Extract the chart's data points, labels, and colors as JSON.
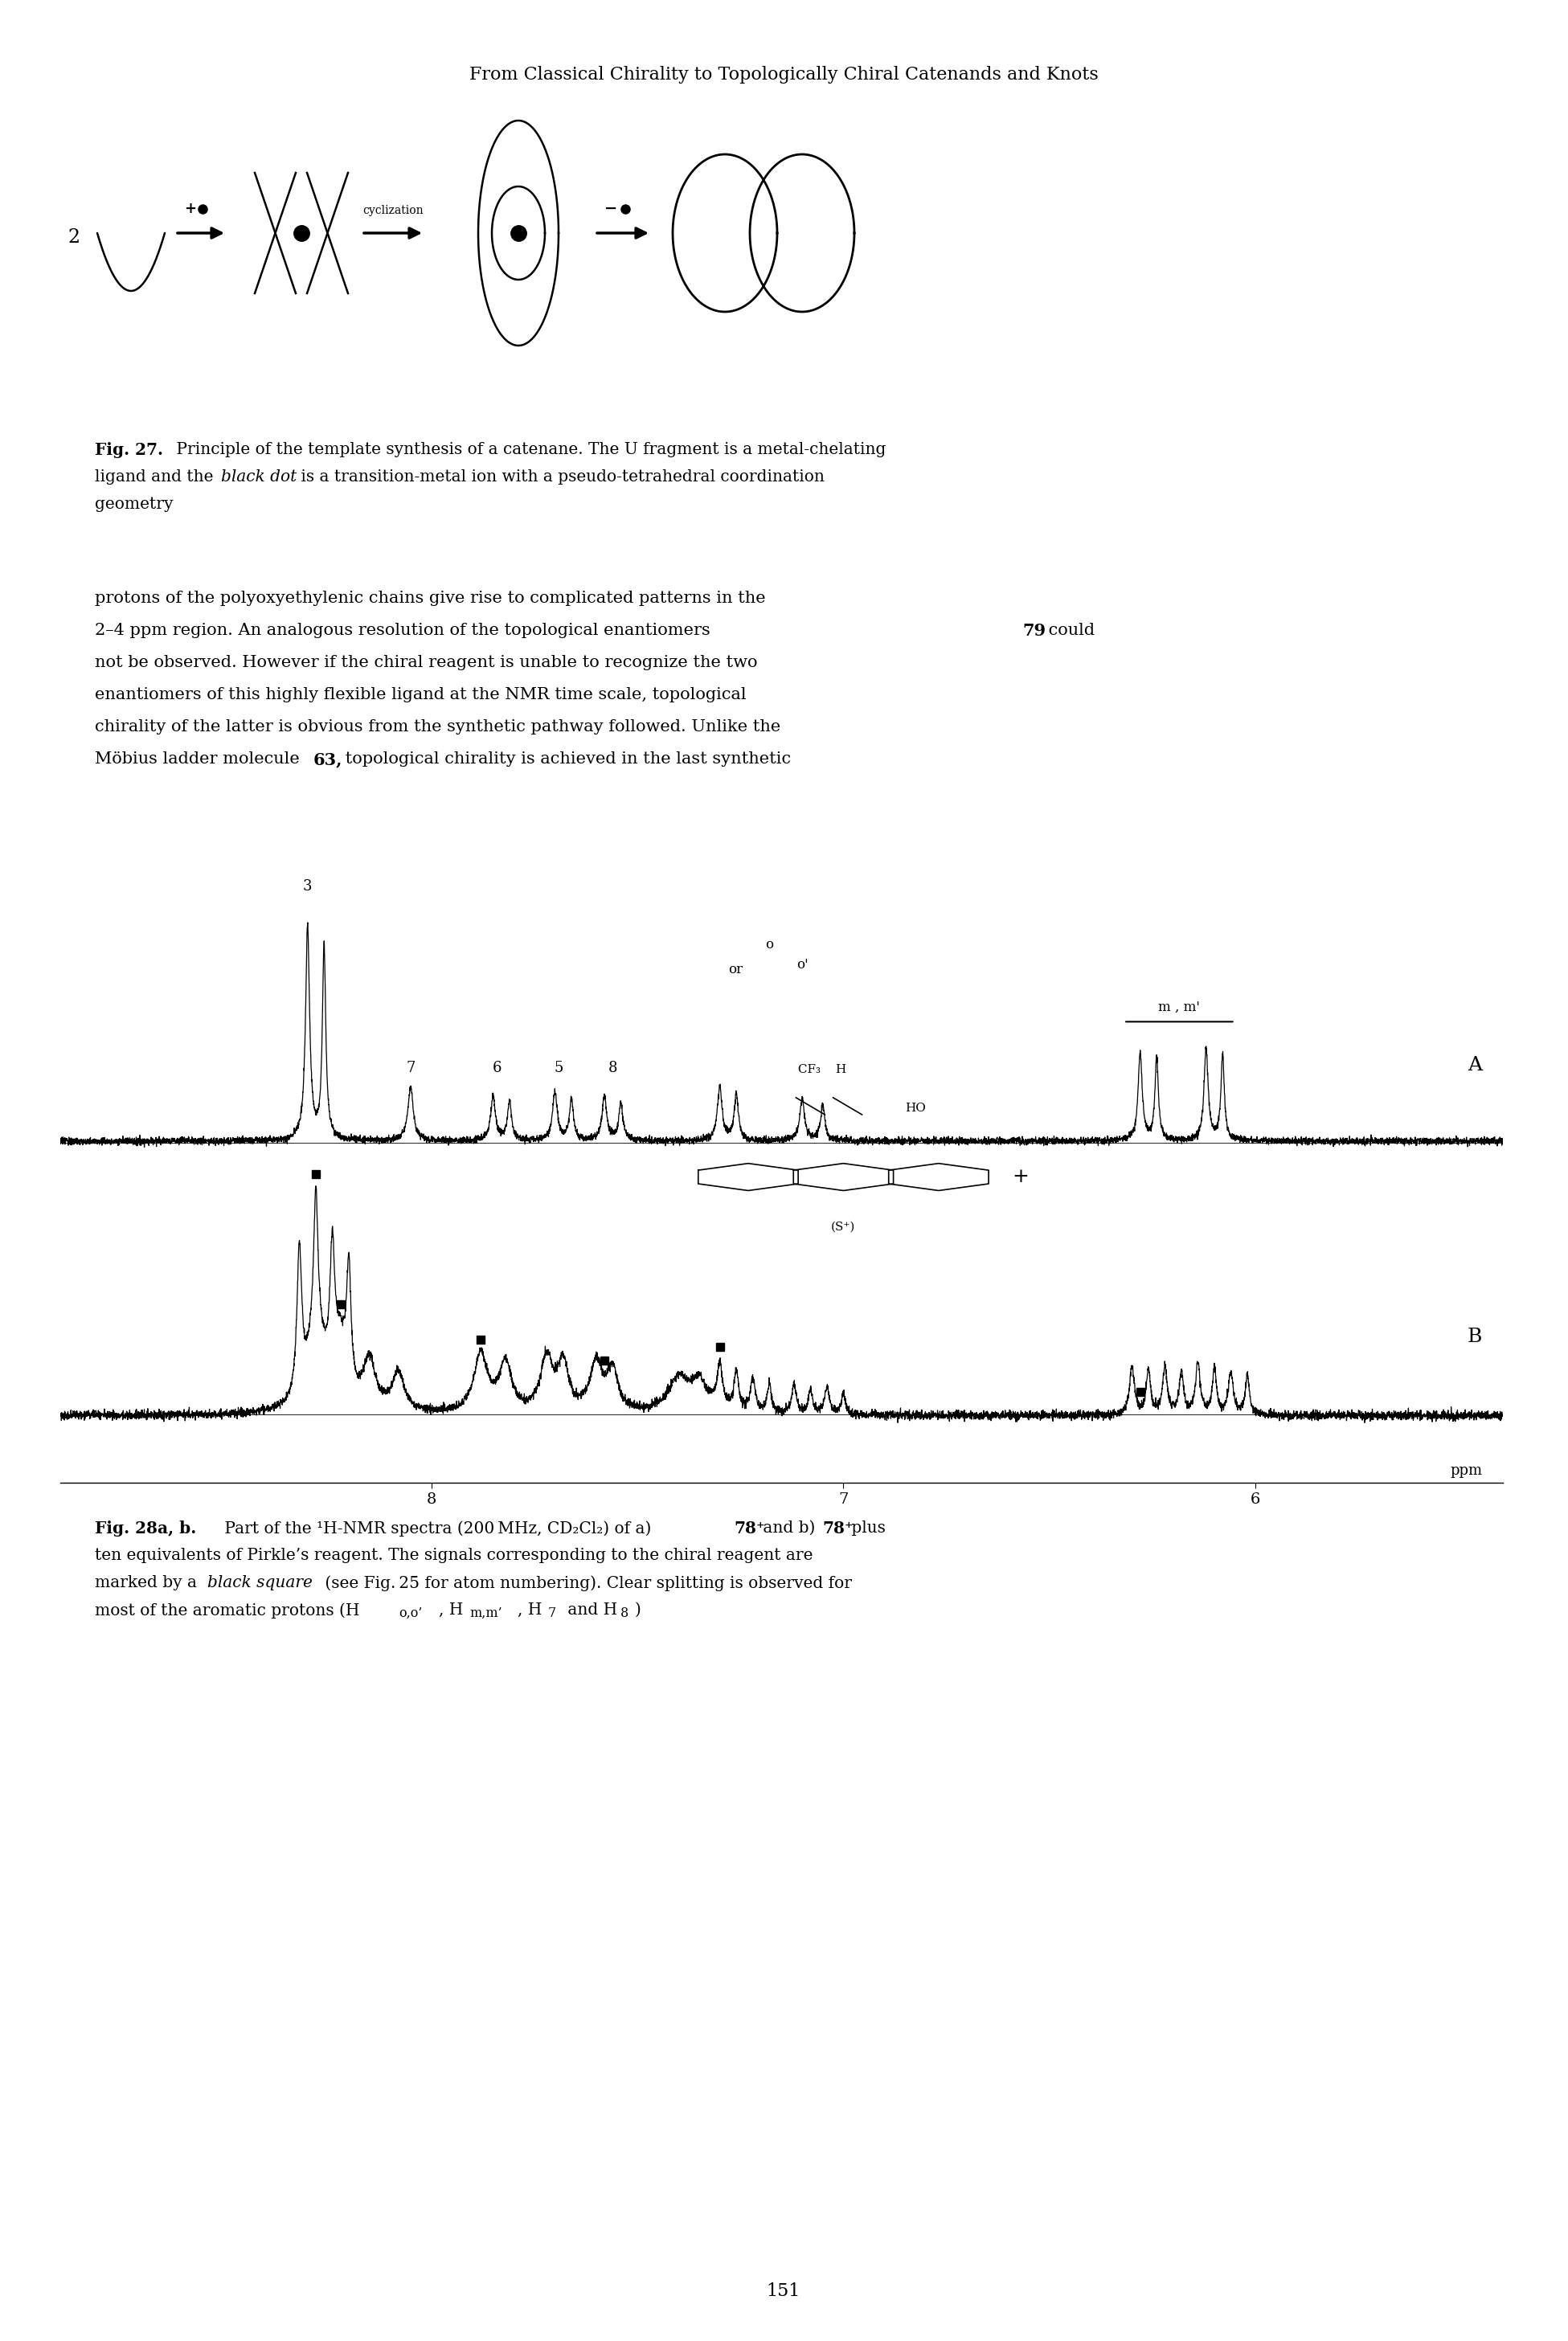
{
  "header": "From Classical Chirality to Topologically Chiral Catenands and Knots",
  "page_number": "151",
  "background_color": "#ffffff",
  "fig27_bold": "Fig. 27.",
  "fig27_text1": " Principle of the template synthesis of a catenane. The U fragment is a metal-chelating",
  "fig27_text2_pre": "ligand and the ",
  "fig27_text2_italic": "black dot",
  "fig27_text2_post": " is a transition-metal ion with a pseudo-tetrahedral coordination",
  "fig27_text3": "geometry",
  "body_line1": "protons of the polyoxyethylenic chains give rise to complicated patterns in the",
  "body_line2a": "2–4 ppm region. An analogous resolution of the topological enantiomers ",
  "body_line2b": "79",
  "body_line2c": " could",
  "body_line3": "not be observed. However if the chiral reagent is unable to recognize the two",
  "body_line4": "enantiomers of this highly flexible ligand at the NMR time scale, topological",
  "body_line5": "chirality of the latter is obvious from the synthetic pathway followed. Unlike the",
  "body_line6a": "Möbius ladder molecule ",
  "body_line6b": "63,",
  "body_line6c": " topological chirality is achieved in the last synthetic",
  "fig28_bold": "Fig. 28a, b.",
  "fig28_text1": " Part of the ¹H-NMR spectra (200 MHz, CD₂Cl₂) of à) ",
  "fig28_text1b": "78⁺",
  "fig28_text1c": " and b) ",
  "fig28_text1d": "78⁺",
  "fig28_text1e": " plus",
  "fig28_text2": "ten equivalents of Pirkle’s reagent. The signals corresponding to the chiral reagent are",
  "fig28_text3a": "marked by a ",
  "fig28_text3b": "black square",
  "fig28_text3c": " (see Fig. 25 for atom numbering). Clear splitting is observed for",
  "fig28_text4": "most of the aromatic protons (H",
  "fig28_sub1": "o,o’",
  "fig28_t4b": ", H",
  "fig28_sub2": "m,m’",
  "fig28_t4c": ", H",
  "fig28_sub3": "7",
  "fig28_t4d": " and H",
  "fig28_sub4": "8",
  "fig28_t4e": ")"
}
